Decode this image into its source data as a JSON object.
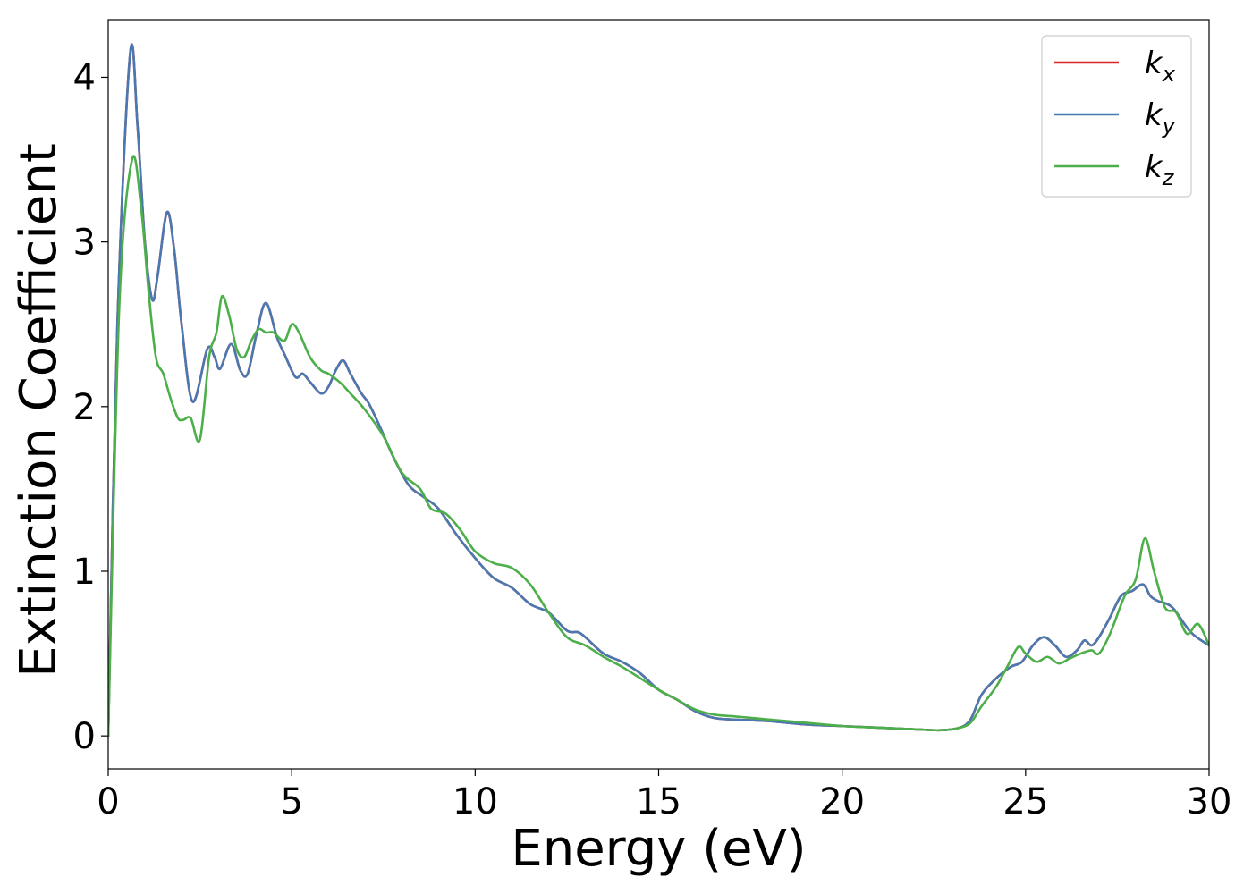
{
  "chart_data": {
    "type": "line",
    "title": "",
    "xlabel": "Energy (eV)",
    "ylabel": "Extinction Coefficient",
    "xlim": [
      0,
      30
    ],
    "ylim": [
      -0.2,
      4.35
    ],
    "xticks": [
      0,
      5,
      10,
      15,
      20,
      25,
      30
    ],
    "xtick_labels": [
      "0",
      "5",
      "10",
      "15",
      "20",
      "25",
      "30"
    ],
    "yticks": [
      0,
      1,
      2,
      3,
      4
    ],
    "ytick_labels": [
      "0",
      "1",
      "2",
      "3",
      "4"
    ],
    "grid": false,
    "legend_position": "top-right",
    "series": [
      {
        "name": "k",
        "subscript": "x",
        "color": "#d62728",
        "x": [
          0,
          0.25,
          0.6,
          0.8,
          1.0,
          1.2,
          1.35,
          1.6,
          1.8,
          2.0,
          2.3,
          2.7,
          2.9,
          3.05,
          3.35,
          3.6,
          3.8,
          4.05,
          4.3,
          4.6,
          4.8,
          5.1,
          5.3,
          5.5,
          5.8,
          6.0,
          6.2,
          6.4,
          6.6,
          6.9,
          7.1,
          7.4,
          7.8,
          8.2,
          8.6,
          9.0,
          9.5,
          10.0,
          10.5,
          11.0,
          11.5,
          12.0,
          12.5,
          12.8,
          13.0,
          13.5,
          14.0,
          14.5,
          15.0,
          15.5,
          16.0,
          16.5,
          17.0,
          18.0,
          19.0,
          20.0,
          21.0,
          22.0,
          22.7,
          23.2,
          23.5,
          23.8,
          24.2,
          24.6,
          24.9,
          25.2,
          25.5,
          25.8,
          26.1,
          26.4,
          26.6,
          26.8,
          27.0,
          27.3,
          27.6,
          27.9,
          28.2,
          28.4,
          28.6,
          29.0,
          29.5,
          30.0
        ],
        "values": [
          0,
          2.5,
          4.15,
          3.7,
          3.0,
          2.65,
          2.8,
          3.18,
          2.95,
          2.5,
          2.03,
          2.35,
          2.3,
          2.23,
          2.38,
          2.22,
          2.2,
          2.45,
          2.63,
          2.42,
          2.32,
          2.18,
          2.2,
          2.15,
          2.08,
          2.12,
          2.22,
          2.28,
          2.2,
          2.08,
          2.02,
          1.88,
          1.68,
          1.52,
          1.45,
          1.38,
          1.22,
          1.08,
          0.96,
          0.9,
          0.8,
          0.75,
          0.64,
          0.63,
          0.6,
          0.5,
          0.45,
          0.38,
          0.28,
          0.22,
          0.15,
          0.11,
          0.1,
          0.09,
          0.07,
          0.06,
          0.05,
          0.04,
          0.035,
          0.05,
          0.1,
          0.25,
          0.35,
          0.42,
          0.45,
          0.55,
          0.6,
          0.55,
          0.48,
          0.52,
          0.58,
          0.55,
          0.6,
          0.72,
          0.85,
          0.88,
          0.92,
          0.85,
          0.82,
          0.78,
          0.63,
          0.55
        ]
      },
      {
        "name": "k",
        "subscript": "y",
        "color": "#4a78b0",
        "x": [
          0,
          0.25,
          0.6,
          0.8,
          1.0,
          1.2,
          1.35,
          1.6,
          1.8,
          2.0,
          2.3,
          2.7,
          2.9,
          3.05,
          3.35,
          3.6,
          3.8,
          4.05,
          4.3,
          4.6,
          4.8,
          5.1,
          5.3,
          5.5,
          5.8,
          6.0,
          6.2,
          6.4,
          6.6,
          6.9,
          7.1,
          7.4,
          7.8,
          8.2,
          8.6,
          9.0,
          9.5,
          10.0,
          10.5,
          11.0,
          11.5,
          12.0,
          12.5,
          12.8,
          13.0,
          13.5,
          14.0,
          14.5,
          15.0,
          15.5,
          16.0,
          16.5,
          17.0,
          18.0,
          19.0,
          20.0,
          21.0,
          22.0,
          22.7,
          23.2,
          23.5,
          23.8,
          24.2,
          24.6,
          24.9,
          25.2,
          25.5,
          25.8,
          26.1,
          26.4,
          26.6,
          26.8,
          27.0,
          27.3,
          27.6,
          27.9,
          28.2,
          28.4,
          28.6,
          29.0,
          29.5,
          30.0
        ],
        "values": [
          0,
          2.5,
          4.15,
          3.7,
          3.0,
          2.65,
          2.8,
          3.18,
          2.95,
          2.5,
          2.03,
          2.35,
          2.3,
          2.23,
          2.38,
          2.22,
          2.2,
          2.45,
          2.63,
          2.42,
          2.32,
          2.18,
          2.2,
          2.15,
          2.08,
          2.12,
          2.22,
          2.28,
          2.2,
          2.08,
          2.02,
          1.88,
          1.68,
          1.52,
          1.45,
          1.38,
          1.22,
          1.08,
          0.96,
          0.9,
          0.8,
          0.75,
          0.64,
          0.63,
          0.6,
          0.5,
          0.45,
          0.38,
          0.28,
          0.22,
          0.15,
          0.11,
          0.1,
          0.09,
          0.07,
          0.06,
          0.05,
          0.04,
          0.035,
          0.05,
          0.1,
          0.25,
          0.35,
          0.42,
          0.45,
          0.55,
          0.6,
          0.55,
          0.48,
          0.52,
          0.58,
          0.55,
          0.6,
          0.72,
          0.85,
          0.88,
          0.92,
          0.85,
          0.82,
          0.78,
          0.63,
          0.55
        ]
      },
      {
        "name": "k",
        "subscript": "z",
        "color": "#4daf4a",
        "x": [
          0,
          0.3,
          0.65,
          0.9,
          1.1,
          1.3,
          1.5,
          1.7,
          1.9,
          2.05,
          2.25,
          2.5,
          2.75,
          2.95,
          3.1,
          3.3,
          3.5,
          3.7,
          3.9,
          4.1,
          4.3,
          4.5,
          4.8,
          5.0,
          5.2,
          5.5,
          5.8,
          6.0,
          6.3,
          6.6,
          7.0,
          7.5,
          8.0,
          8.5,
          8.8,
          9.2,
          9.6,
          10.0,
          10.5,
          11.0,
          11.5,
          12.0,
          12.5,
          13.0,
          13.5,
          14.0,
          14.5,
          15.0,
          15.5,
          16.0,
          16.5,
          17.0,
          18.0,
          19.0,
          20.0,
          21.0,
          22.0,
          22.7,
          23.2,
          23.5,
          23.8,
          24.2,
          24.5,
          24.8,
          25.0,
          25.3,
          25.6,
          25.9,
          26.2,
          26.5,
          26.8,
          27.0,
          27.3,
          27.7,
          28.0,
          28.25,
          28.5,
          28.8,
          29.1,
          29.4,
          29.7,
          30.0
        ],
        "values": [
          0,
          2.6,
          3.5,
          3.2,
          2.7,
          2.3,
          2.2,
          2.05,
          1.93,
          1.92,
          1.93,
          1.8,
          2.3,
          2.45,
          2.67,
          2.55,
          2.35,
          2.3,
          2.4,
          2.47,
          2.45,
          2.45,
          2.4,
          2.5,
          2.45,
          2.3,
          2.22,
          2.2,
          2.15,
          2.08,
          1.98,
          1.82,
          1.6,
          1.5,
          1.38,
          1.35,
          1.25,
          1.12,
          1.05,
          1.02,
          0.92,
          0.75,
          0.6,
          0.55,
          0.48,
          0.42,
          0.35,
          0.28,
          0.22,
          0.16,
          0.13,
          0.12,
          0.1,
          0.08,
          0.06,
          0.05,
          0.04,
          0.035,
          0.05,
          0.08,
          0.18,
          0.3,
          0.42,
          0.54,
          0.5,
          0.45,
          0.48,
          0.44,
          0.47,
          0.5,
          0.52,
          0.5,
          0.62,
          0.85,
          0.95,
          1.2,
          1.0,
          0.78,
          0.75,
          0.62,
          0.68,
          0.55
        ]
      }
    ]
  }
}
